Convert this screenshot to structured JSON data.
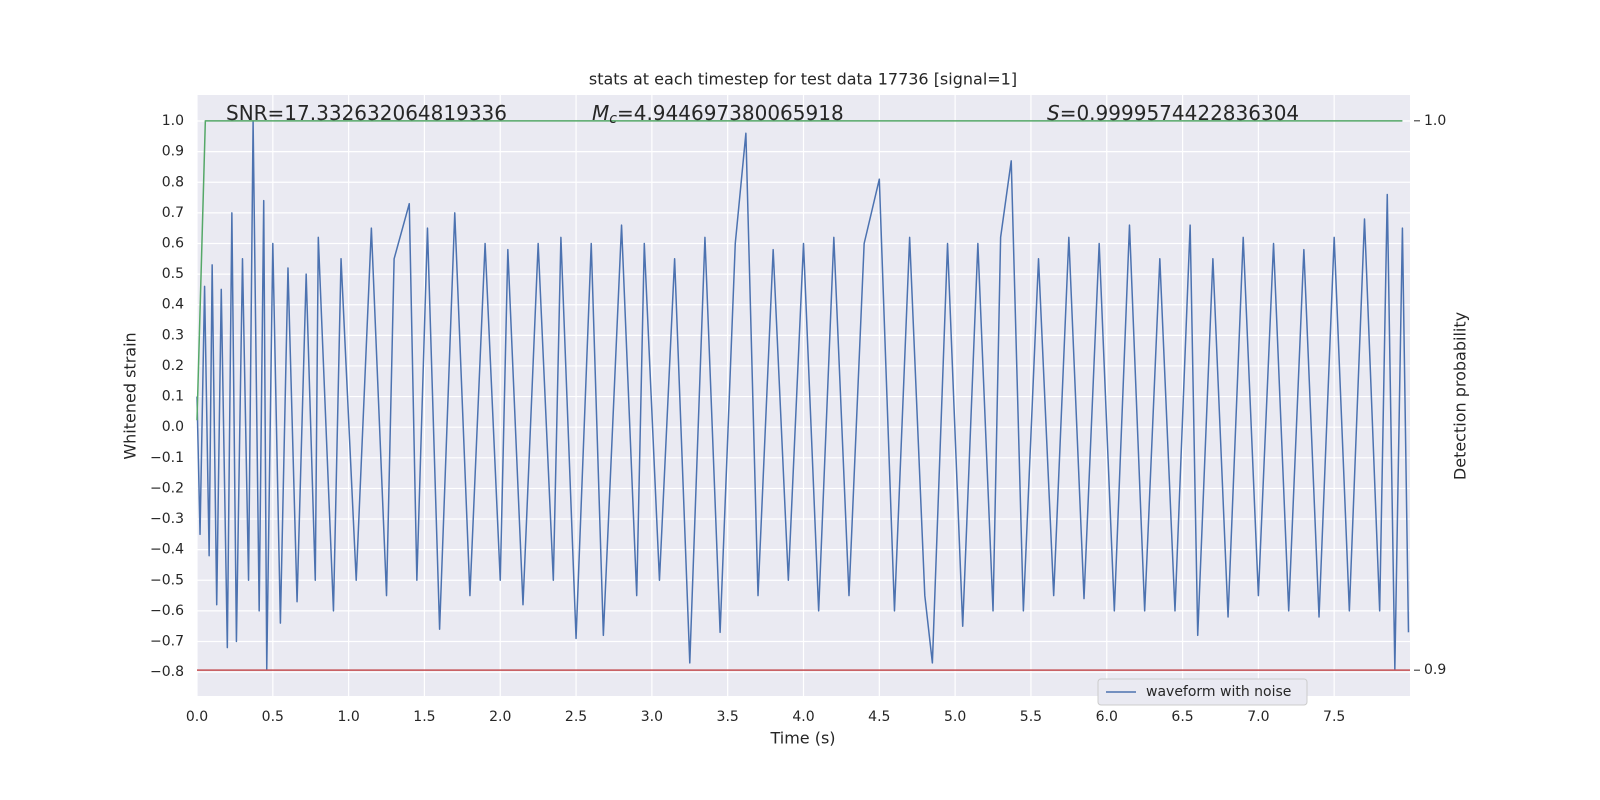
{
  "chart_data": {
    "type": "line",
    "title": "stats at each timestep for test data 17736 [signal=1]",
    "xlabel": "Time (s)",
    "ylabel": "Whitened strain",
    "y2label": "Detection probability",
    "annotations": [
      {
        "text": "SNR=17.332632064819336"
      },
      {
        "symbol": "M",
        "sub": "c",
        "text": "=4.944697380065918"
      },
      {
        "symbol": "S",
        "text": "=0.9999574422836304"
      }
    ],
    "xlim": [
      0,
      8
    ],
    "ylim": [
      -0.878,
      1.085
    ],
    "y2lim": [
      0.8953,
      1.0047
    ],
    "xticks": [
      {
        "value": 0,
        "label": "0.0"
      },
      0.5,
      {
        "value": 1,
        "label": "1.0"
      },
      1.5,
      {
        "value": 2,
        "label": "2.0"
      },
      2.5,
      {
        "value": 3,
        "label": "3.0"
      },
      3.5,
      {
        "value": 4,
        "label": "4.0"
      },
      4.5,
      {
        "value": 5,
        "label": "5.0"
      },
      5.5,
      {
        "value": 6,
        "label": "6.0"
      },
      6.5,
      {
        "value": 7,
        "label": "7.0"
      },
      7.5
    ],
    "yticks": [
      {
        "value": 1,
        "label": "1.0"
      },
      0.9,
      0.8,
      0.7,
      0.6,
      0.5,
      0.4,
      0.3,
      0.2,
      0.1,
      {
        "value": 0,
        "label": "0.0"
      },
      {
        "value": -0.1,
        "label": "−0.1"
      },
      {
        "value": -0.2,
        "label": "−0.2"
      },
      {
        "value": -0.3,
        "label": "−0.3"
      },
      {
        "value": -0.4,
        "label": "−0.4"
      },
      {
        "value": -0.5,
        "label": "−0.5"
      },
      {
        "value": -0.6,
        "label": "−0.6"
      },
      {
        "value": -0.7,
        "label": "−0.7"
      },
      {
        "value": -0.8,
        "label": "−0.8"
      }
    ],
    "y2ticks": [
      {
        "value": 1,
        "label": "1.0"
      },
      0.9
    ],
    "grid": true,
    "legend": "lower right",
    "series": [
      {
        "name": "waveform with noise",
        "color": "#4c72b0",
        "x": [
          0.0,
          0.02,
          0.05,
          0.08,
          0.1,
          0.13,
          0.16,
          0.2,
          0.23,
          0.26,
          0.3,
          0.34,
          0.37,
          0.41,
          0.44,
          0.46,
          0.5,
          0.55,
          0.6,
          0.66,
          0.72,
          0.78,
          0.8,
          0.9,
          0.95,
          1.05,
          1.15,
          1.25,
          1.3,
          1.4,
          1.45,
          1.52,
          1.6,
          1.7,
          1.8,
          1.9,
          2.0,
          2.05,
          2.15,
          2.25,
          2.35,
          2.4,
          2.5,
          2.6,
          2.68,
          2.8,
          2.9,
          2.95,
          3.05,
          3.15,
          3.25,
          3.35,
          3.45,
          3.55,
          3.62,
          3.7,
          3.8,
          3.9,
          4.0,
          4.1,
          4.2,
          4.3,
          4.4,
          4.5,
          4.6,
          4.7,
          4.8,
          4.85,
          4.95,
          5.05,
          5.15,
          5.25,
          5.3,
          5.37,
          5.45,
          5.55,
          5.65,
          5.75,
          5.85,
          5.95,
          6.05,
          6.15,
          6.25,
          6.35,
          6.45,
          6.55,
          6.6,
          6.7,
          6.8,
          6.9,
          7.0,
          7.1,
          7.2,
          7.3,
          7.4,
          7.5,
          7.6,
          7.7,
          7.8,
          7.85,
          7.9,
          7.95,
          7.99
        ],
        "values": [
          0.1,
          -0.35,
          0.46,
          -0.42,
          0.53,
          -0.58,
          0.45,
          -0.72,
          0.7,
          -0.7,
          0.55,
          -0.5,
          1.0,
          -0.6,
          0.74,
          -0.79,
          0.6,
          -0.64,
          0.52,
          -0.57,
          0.5,
          -0.5,
          0.62,
          -0.6,
          0.55,
          -0.5,
          0.65,
          -0.55,
          0.55,
          0.73,
          -0.5,
          0.65,
          -0.66,
          0.7,
          -0.55,
          0.6,
          -0.5,
          0.58,
          -0.58,
          0.6,
          -0.5,
          0.62,
          -0.69,
          0.6,
          -0.68,
          0.66,
          -0.55,
          0.6,
          -0.5,
          0.55,
          -0.77,
          0.62,
          -0.67,
          0.6,
          0.96,
          -0.55,
          0.58,
          -0.5,
          0.6,
          -0.6,
          0.62,
          -0.55,
          0.6,
          0.81,
          -0.6,
          0.62,
          -0.55,
          -0.77,
          0.6,
          -0.65,
          0.6,
          -0.6,
          0.62,
          0.87,
          -0.6,
          0.55,
          -0.55,
          0.62,
          -0.56,
          0.6,
          -0.6,
          0.66,
          -0.6,
          0.55,
          -0.6,
          0.66,
          -0.68,
          0.55,
          -0.62,
          0.62,
          -0.55,
          0.6,
          -0.6,
          0.58,
          -0.62,
          0.62,
          -0.6,
          0.68,
          -0.6,
          0.76,
          -0.79,
          0.65,
          -0.67
        ]
      },
      {
        "color": "#55a868",
        "axis": "y2",
        "x": [
          0,
          0.055,
          7.95
        ],
        "values": [
          0.9455,
          1.0,
          1.0
        ]
      },
      {
        "color": "#c44e52",
        "axis": "y2",
        "x": [
          0,
          8
        ],
        "values": [
          0.9,
          0.9
        ]
      }
    ]
  }
}
